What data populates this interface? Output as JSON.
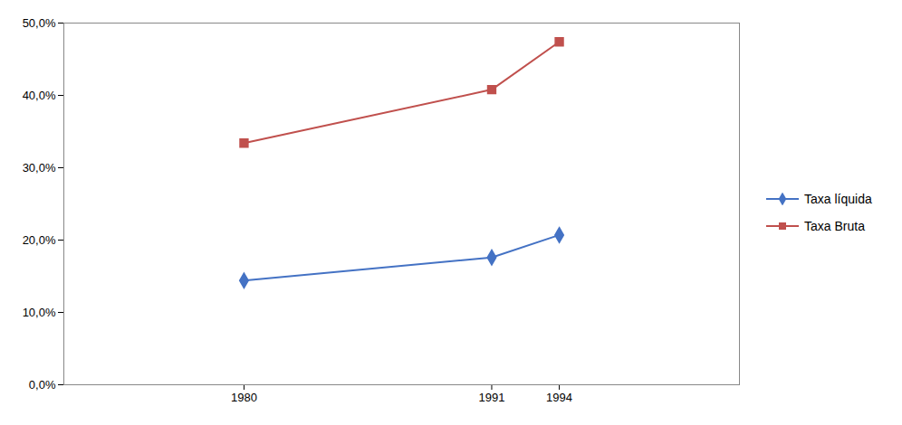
{
  "chart_data": {
    "type": "line",
    "x": [
      1980,
      1991,
      1994
    ],
    "series": [
      {
        "name": "Taxa líquida",
        "color": "#4472C4",
        "marker": "diamond",
        "values": [
          0.144,
          0.176,
          0.207
        ]
      },
      {
        "name": "Taxa Bruta",
        "color": "#C0504D",
        "marker": "square",
        "values": [
          0.334,
          0.408,
          0.474
        ]
      }
    ],
    "xlim": [
      1972,
      2002
    ],
    "xticks": [
      1980,
      1991,
      1994
    ],
    "ylim": [
      0,
      0.5
    ],
    "yticks": [
      {
        "value": 0.0,
        "label": "0,0%"
      },
      {
        "value": 0.1,
        "label": "10,0%"
      },
      {
        "value": 0.2,
        "label": "20,0%"
      },
      {
        "value": 0.3,
        "label": "30,0%"
      },
      {
        "value": 0.4,
        "label": "40,0%"
      },
      {
        "value": 0.5,
        "label": "50,0%"
      }
    ],
    "grid": false,
    "legend": "right"
  }
}
